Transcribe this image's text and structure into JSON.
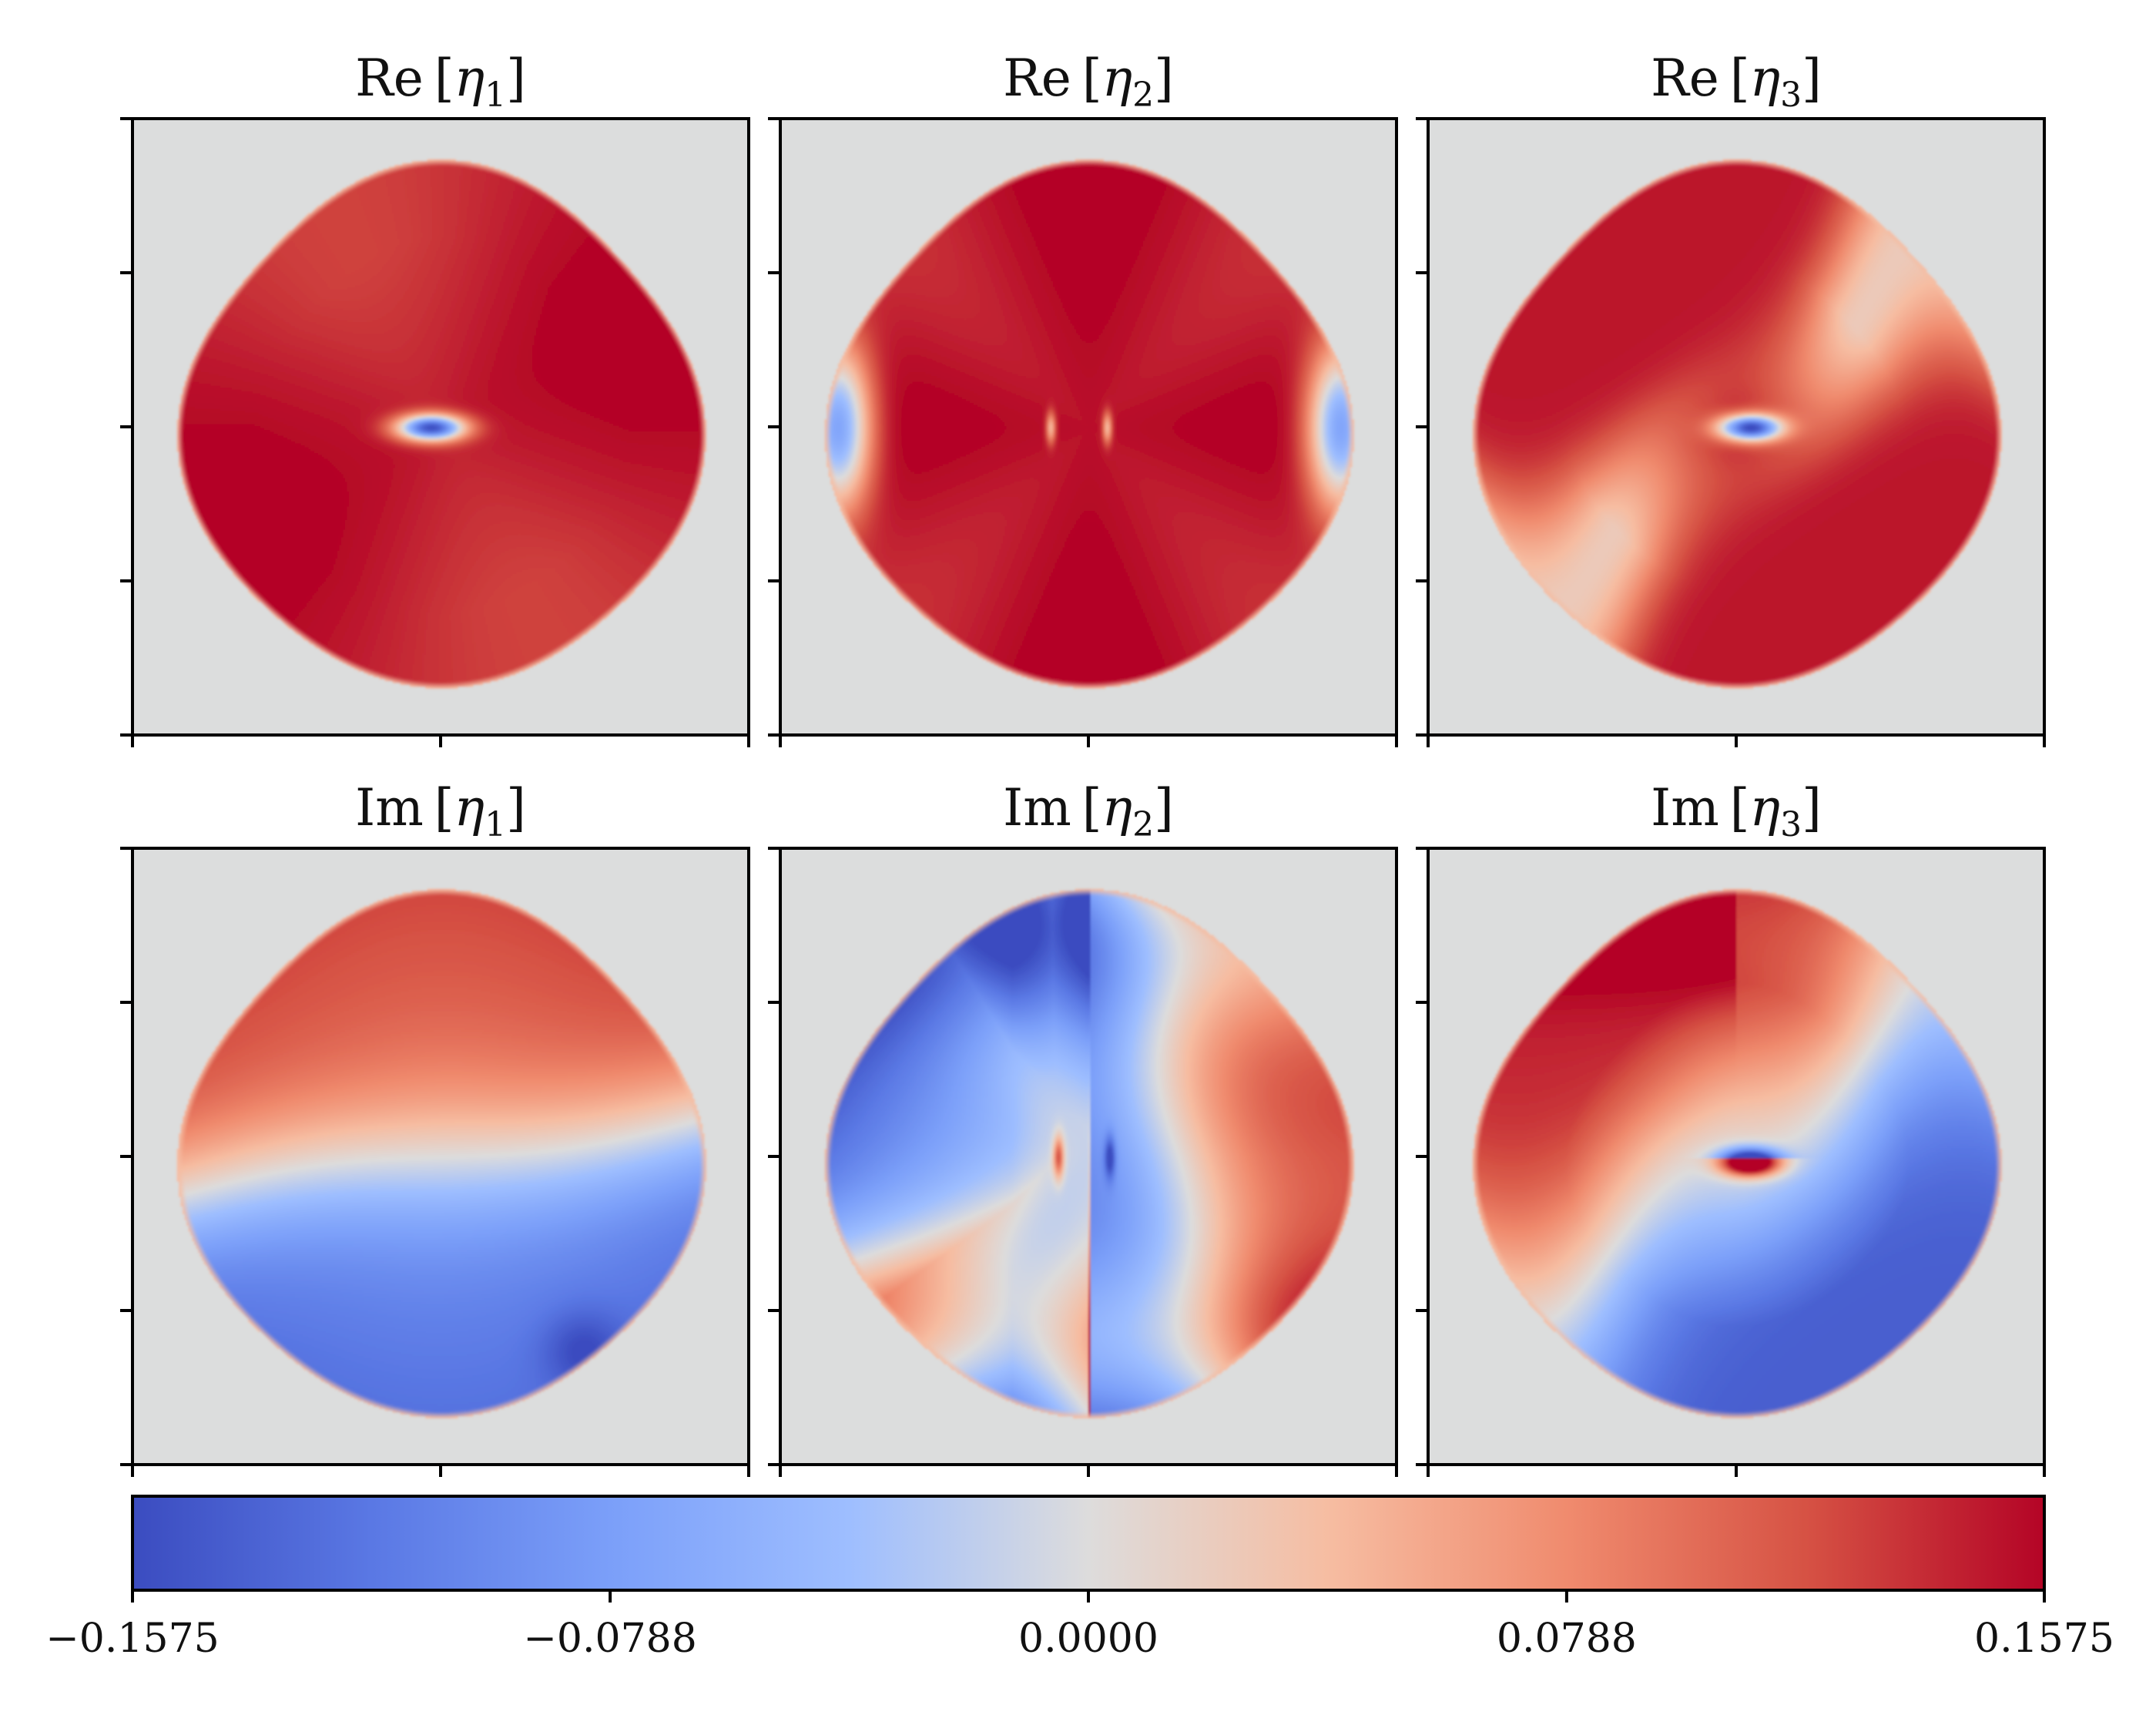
{
  "chart_data": {
    "type": "heatmap",
    "colormap": "coolwarm",
    "panels": [
      {
        "title_fn": "Re",
        "title_sym": "η",
        "title_sub": "1",
        "pattern": "re1"
      },
      {
        "title_fn": "Re",
        "title_sym": "η",
        "title_sub": "2",
        "pattern": "re2"
      },
      {
        "title_fn": "Re",
        "title_sym": "η",
        "title_sub": "3",
        "pattern": "re3"
      },
      {
        "title_fn": "Im",
        "title_sym": "η",
        "title_sub": "1",
        "pattern": "im1"
      },
      {
        "title_fn": "Im",
        "title_sym": "η",
        "title_sub": "2",
        "pattern": "im2"
      },
      {
        "title_fn": "Im",
        "title_sym": "η",
        "title_sub": "3",
        "pattern": "im3"
      }
    ],
    "grid": {
      "rows": 2,
      "cols": 3
    },
    "tick_labels_shown": false,
    "colorbar": {
      "orientation": "horizontal",
      "placement": "bottom",
      "vmin": -0.1575,
      "vmax": 0.1575,
      "ticks": [
        -0.1575,
        -0.0788,
        0.0,
        0.0788,
        0.1575
      ],
      "tick_labels": [
        "−0.1575",
        "−0.0788",
        "0.0000",
        "0.0788",
        "0.1575"
      ]
    },
    "colors": {
      "background_gray": "#dcdddd",
      "low": "#3b4cc0",
      "mid": "#dddcdc",
      "high": "#b40426"
    }
  }
}
